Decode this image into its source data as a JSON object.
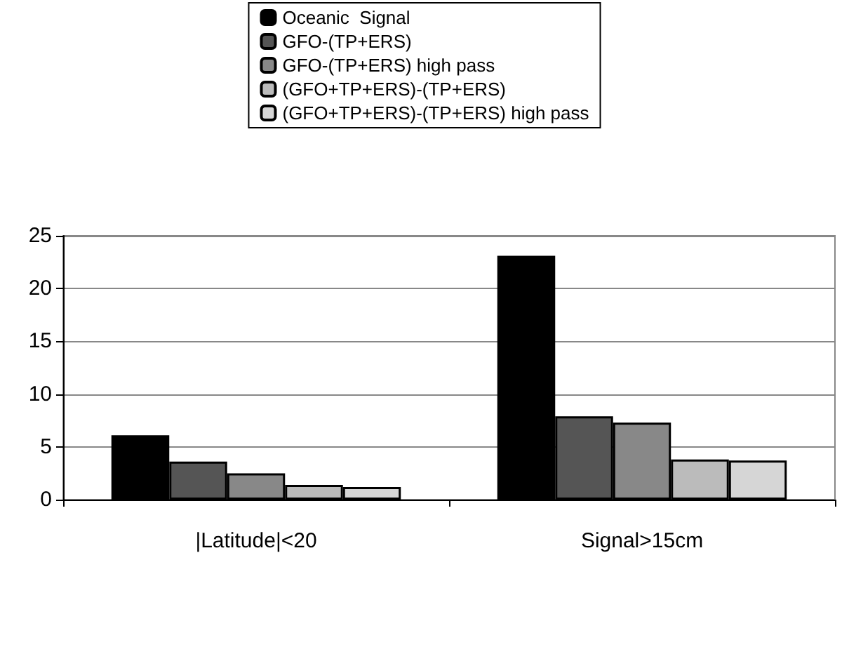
{
  "chart_data": {
    "type": "bar",
    "categories": [
      "|Latitude|<20",
      "Signal>15cm"
    ],
    "series": [
      {
        "name": "Oceanic  Signal",
        "color": "#000000",
        "values": [
          6.1,
          23.1
        ]
      },
      {
        "name": "GFO-(TP+ERS)",
        "color": "#555555",
        "values": [
          3.6,
          7.9
        ]
      },
      {
        "name": "GFO-(TP+ERS) high pass",
        "color": "#888888",
        "values": [
          2.5,
          7.3
        ]
      },
      {
        "name": "(GFO+TP+ERS)-(TP+ERS)",
        "color": "#bbbbbb",
        "values": [
          1.4,
          3.8
        ]
      },
      {
        "name": "(GFO+TP+ERS)-(TP+ERS) high pass",
        "color": "#d6d6d6",
        "values": [
          1.2,
          3.7
        ]
      }
    ],
    "ylim": [
      0,
      25
    ],
    "yticks": [
      0,
      5,
      10,
      15,
      20,
      25
    ],
    "grid": "y",
    "legend": "top"
  }
}
